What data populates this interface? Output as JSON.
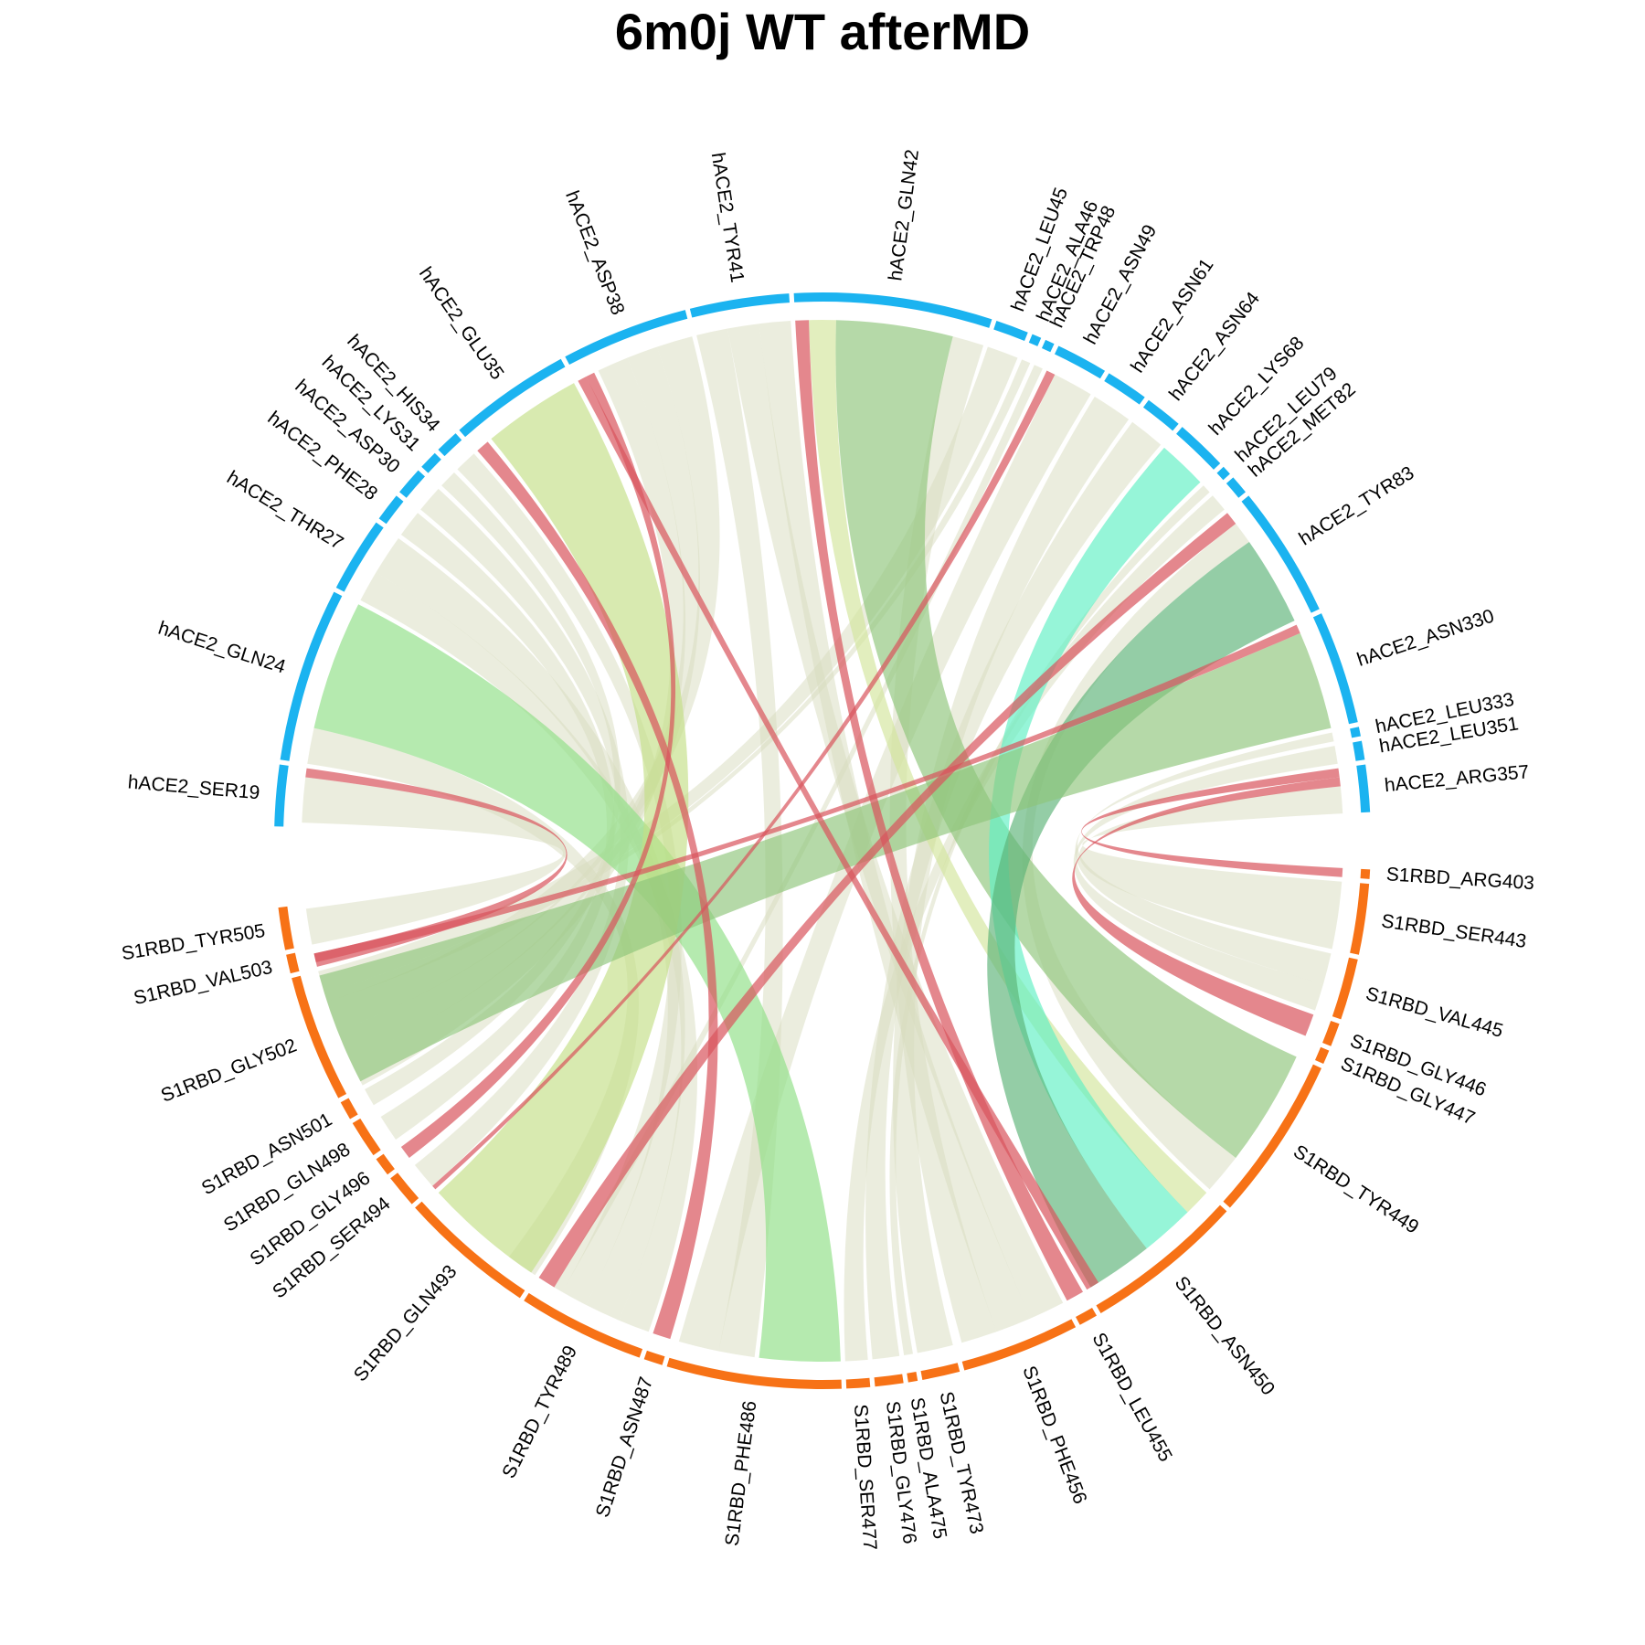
{
  "title": "6m0j WT afterMD",
  "colors": {
    "hACE2_track": "#1bb3f0",
    "S1RBD_track": "#f77216",
    "weak": "#d8dcbd",
    "red": "#d9545c",
    "green": "#8ec47a",
    "lightgreen": "#8ddf84",
    "lime": "#c3de86",
    "yellowgreen": "#d3e59b",
    "mint": "#5ef0c3",
    "darkgreen": "#5ab276"
  },
  "chart_data": {
    "type": "chord",
    "groups": [
      {
        "name": "hACE2",
        "color": "#1bb3f0",
        "segments": [
          {
            "label": "hACE2_SER19",
            "a0": 181.5,
            "a1": 188.0
          },
          {
            "label": "hACE2_GLN24",
            "a0": 188.5,
            "a1": 207.0
          },
          {
            "label": "hACE2_THR27",
            "a0": 207.5,
            "a1": 215.5
          },
          {
            "label": "hACE2_PHE28",
            "a0": 216.0,
            "a1": 219.0
          },
          {
            "label": "hACE2_ASP30",
            "a0": 219.5,
            "a1": 222.5
          },
          {
            "label": "hACE2_LYS31",
            "a0": 223.0,
            "a1": 225.0
          },
          {
            "label": "hACE2_HIS34",
            "a0": 225.5,
            "a1": 228.0
          },
          {
            "label": "hACE2_GLU35",
            "a0": 228.5,
            "a1": 241.5
          },
          {
            "label": "hACE2_ASP38",
            "a0": 242.0,
            "a1": 255.5
          },
          {
            "label": "hACE2_TYR41",
            "a0": 256.0,
            "a1": 266.5
          },
          {
            "label": "hACE2_GLN42",
            "a0": 267.0,
            "a1": 288.0
          },
          {
            "label": "hACE2_LEU45",
            "a0": 288.5,
            "a1": 292.0
          },
          {
            "label": "hACE2_ALA46",
            "a0": 292.5,
            "a1": 293.5
          },
          {
            "label": "hACE2_TRP48",
            "a0": 294.0,
            "a1": 295.0
          },
          {
            "label": "hACE2_ASN49",
            "a0": 295.5,
            "a1": 301.0
          },
          {
            "label": "hACE2_ASN61",
            "a0": 301.5,
            "a1": 306.0
          },
          {
            "label": "hACE2_ASN64",
            "a0": 306.5,
            "a1": 310.5
          },
          {
            "label": "hACE2_LYS68",
            "a0": 311.0,
            "a1": 316.5
          },
          {
            "label": "hACE2_LEU79",
            "a0": 317.0,
            "a1": 318.0
          },
          {
            "label": "hACE2_MET82",
            "a0": 318.5,
            "a1": 320.5
          },
          {
            "label": "hACE2_TYR83",
            "a0": 321.0,
            "a1": 335.0
          },
          {
            "label": "hACE2_ASN330",
            "a0": 335.5,
            "a1": 347.5
          },
          {
            "label": "hACE2_LEU333",
            "a0": 348.0,
            "a1": 349.0
          },
          {
            "label": "hACE2_LEU351",
            "a0": 349.5,
            "a1": 351.5
          },
          {
            "label": "hACE2_ARG357",
            "a0": 352.0,
            "a1": 357.0
          }
        ]
      },
      {
        "name": "S1RBD",
        "color": "#f77216",
        "segments": [
          {
            "label": "S1RBD_ARG403",
            "a0": 3.0,
            "a1": 4.0
          },
          {
            "label": "S1RBD_SER443",
            "a0": 4.5,
            "a1": 12.0
          },
          {
            "label": "S1RBD_VAL445",
            "a0": 12.5,
            "a1": 19.0
          },
          {
            "label": "S1RBD_GLY446",
            "a0": 19.5,
            "a1": 22.0
          },
          {
            "label": "S1RBD_GLY447",
            "a0": 22.5,
            "a1": 24.0
          },
          {
            "label": "S1RBD_TYR449",
            "a0": 24.5,
            "a1": 42.0
          },
          {
            "label": "S1RBD_ASN450",
            "a0": 42.5,
            "a1": 59.5
          },
          {
            "label": "S1RBD_LEU455",
            "a0": 60.0,
            "a1": 62.0
          },
          {
            "label": "S1RBD_PHE456",
            "a0": 62.5,
            "a1": 75.0
          },
          {
            "label": "S1RBD_TYR473",
            "a0": 75.5,
            "a1": 79.5
          },
          {
            "label": "S1RBD_ALA475",
            "a0": 80.0,
            "a1": 81.0
          },
          {
            "label": "S1RBD_GLY476",
            "a0": 81.5,
            "a1": 84.5
          },
          {
            "label": "S1RBD_SER477",
            "a0": 85.0,
            "a1": 87.5
          },
          {
            "label": "S1RBD_PHE486",
            "a0": 88.0,
            "a1": 106.5
          },
          {
            "label": "S1RBD_ASN487",
            "a0": 107.0,
            "a1": 109.0
          },
          {
            "label": "S1RBD_TYR489",
            "a0": 109.5,
            "a1": 123.0
          },
          {
            "label": "S1RBD_GLN493",
            "a0": 123.5,
            "a1": 138.0
          },
          {
            "label": "S1RBD_SER494",
            "a0": 138.5,
            "a1": 142.0
          },
          {
            "label": "S1RBD_GLY496",
            "a0": 142.5,
            "a1": 144.5
          },
          {
            "label": "S1RBD_GLN498",
            "a0": 145.0,
            "a1": 149.0
          },
          {
            "label": "S1RBD_ASN501",
            "a0": 149.5,
            "a1": 151.5
          },
          {
            "label": "S1RBD_GLY502",
            "a0": 152.0,
            "a1": 165.5
          },
          {
            "label": "S1RBD_VAL503",
            "a0": 166.0,
            "a1": 168.0
          },
          {
            "label": "S1RBD_TYR505",
            "a0": 168.5,
            "a1": 173.0
          }
        ]
      }
    ],
    "links": [
      {
        "s": [
          182.0,
          187.0
        ],
        "t": [
          168.5,
          172.5
        ],
        "c": "weak"
      },
      {
        "s": [
          187.0,
          188.0
        ],
        "t": [
          166.0,
          167.5
        ],
        "c": "red"
      },
      {
        "s": [
          188.5,
          192.5
        ],
        "t": [
          123.5,
          127.0
        ],
        "c": "weak"
      },
      {
        "s": [
          192.5,
          207.0
        ],
        "t": [
          88.0,
          97.0
        ],
        "c": "lightgreen"
      },
      {
        "s": [
          207.5,
          211.0
        ],
        "t": [
          109.5,
          113.0
        ],
        "c": "weak"
      },
      {
        "s": [
          211.0,
          215.5
        ],
        "t": [
          113.0,
          117.0
        ],
        "c": "weak"
      },
      {
        "s": [
          216.0,
          219.0
        ],
        "t": [
          145.0,
          148.0
        ],
        "c": "weak"
      },
      {
        "s": [
          219.5,
          222.5
        ],
        "t": [
          138.5,
          141.5
        ],
        "c": "weak"
      },
      {
        "s": [
          223.0,
          225.0
        ],
        "t": [
          149.5,
          151.5
        ],
        "c": "weak"
      },
      {
        "s": [
          225.5,
          228.0
        ],
        "t": [
          117.0,
          120.0
        ],
        "c": "weak"
      },
      {
        "s": [
          228.5,
          230.0
        ],
        "t": [
          107.0,
          109.0
        ],
        "c": "red"
      },
      {
        "s": [
          230.5,
          241.5
        ],
        "t": [
          124.0,
          137.5
        ],
        "c": "lime"
      },
      {
        "s": [
          242.0,
          243.0
        ],
        "t": [
          58.0,
          59.5
        ],
        "c": "red"
      },
      {
        "s": [
          243.0,
          244.0
        ],
        "t": [
          142.5,
          144.0
        ],
        "c": "red"
      },
      {
        "s": [
          244.5,
          248.0
        ],
        "t": [
          152.0,
          155.0
        ],
        "c": "weak"
      },
      {
        "s": [
          248.0,
          251.5
        ],
        "t": [
          155.0,
          158.5
        ],
        "c": "weak"
      },
      {
        "s": [
          251.5,
          255.5
        ],
        "t": [
          158.5,
          162.0
        ],
        "c": "weak"
      },
      {
        "s": [
          256.0,
          259.5
        ],
        "t": [
          97.5,
          101.5
        ],
        "c": "weak"
      },
      {
        "s": [
          259.5,
          263.0
        ],
        "t": [
          62.5,
          66.5
        ],
        "c": "weak"
      },
      {
        "s": [
          263.0,
          266.5
        ],
        "t": [
          66.5,
          70.5
        ],
        "c": "weak"
      },
      {
        "s": [
          267.0,
          268.5
        ],
        "t": [
          60.0,
          62.0
        ],
        "c": "red"
      },
      {
        "s": [
          268.5,
          271.5
        ],
        "t": [
          42.5,
          45.5
        ],
        "c": "yellowgreen"
      },
      {
        "s": [
          271.5,
          284.5
        ],
        "t": [
          24.5,
          37.5
        ],
        "c": "green"
      },
      {
        "s": [
          284.5,
          288.0
        ],
        "t": [
          70.5,
          74.5
        ],
        "c": "weak"
      },
      {
        "s": [
          288.5,
          292.0
        ],
        "t": [
          163.0,
          165.5
        ],
        "c": "weak"
      },
      {
        "s": [
          292.5,
          293.5
        ],
        "t": [
          162.0,
          163.0
        ],
        "c": "weak"
      },
      {
        "s": [
          294.0,
          295.0
        ],
        "t": [
          120.0,
          121.0
        ],
        "c": "weak"
      },
      {
        "s": [
          295.5,
          296.5
        ],
        "t": [
          138.0,
          138.5
        ],
        "c": "red"
      },
      {
        "s": [
          296.5,
          301.0
        ],
        "t": [
          101.5,
          106.0
        ],
        "c": "weak"
      },
      {
        "s": [
          301.5,
          306.0
        ],
        "t": [
          75.5,
          79.5
        ],
        "c": "weak"
      },
      {
        "s": [
          306.5,
          310.5
        ],
        "t": [
          81.5,
          84.5
        ],
        "c": "weak"
      },
      {
        "s": [
          311.0,
          316.5
        ],
        "t": [
          45.5,
          51.5
        ],
        "c": "mint"
      },
      {
        "s": [
          317.0,
          318.0
        ],
        "t": [
          80.0,
          81.0
        ],
        "c": "weak"
      },
      {
        "s": [
          318.5,
          320.5
        ],
        "t": [
          85.0,
          87.5
        ],
        "c": "weak"
      },
      {
        "s": [
          321.0,
          322.5
        ],
        "t": [
          121.0,
          123.0
        ],
        "c": "red"
      },
      {
        "s": [
          322.5,
          325.0
        ],
        "t": [
          37.5,
          42.0
        ],
        "c": "weak"
      },
      {
        "s": [
          325.0,
          335.0
        ],
        "t": [
          51.5,
          59.0
        ],
        "c": "darkgreen"
      },
      {
        "s": [
          335.5,
          336.5
        ],
        "t": [
          166.5,
          167.5
        ],
        "c": "red"
      },
      {
        "s": [
          336.5,
          347.5
        ],
        "t": [
          152.5,
          165.0
        ],
        "c": "green"
      },
      {
        "s": [
          348.0,
          349.0
        ],
        "t": [
          12.5,
          16.0
        ],
        "c": "weak"
      },
      {
        "s": [
          349.5,
          351.5
        ],
        "t": [
          16.0,
          19.0
        ],
        "c": "weak"
      },
      {
        "s": [
          352.0,
          353.0
        ],
        "t": [
          3.0,
          4.0
        ],
        "c": "red"
      },
      {
        "s": [
          353.0,
          354.0
        ],
        "t": [
          19.5,
          22.0
        ],
        "c": "red"
      },
      {
        "s": [
          354.0,
          357.0
        ],
        "t": [
          4.5,
          12.0
        ],
        "c": "weak"
      }
    ]
  }
}
